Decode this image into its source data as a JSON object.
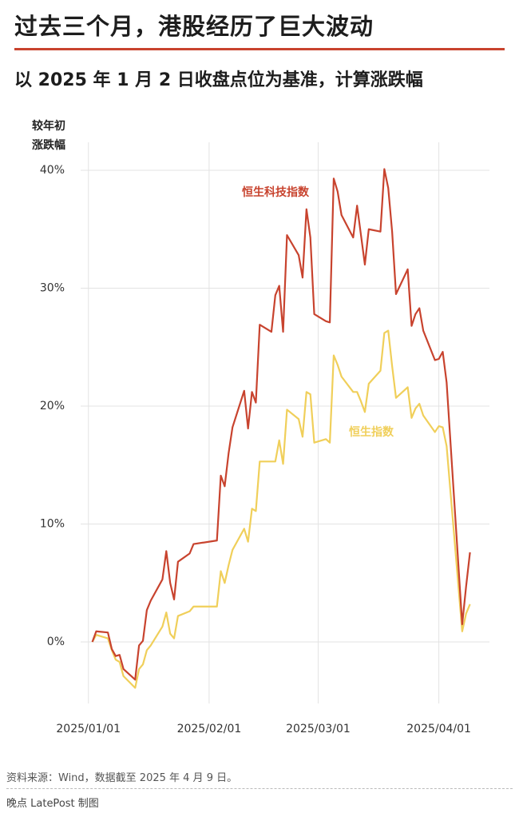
{
  "header": {
    "title": "过去三个月，港股经历了巨大波动",
    "subtitle": "以 2025 年 1 月 2 日收盘点位为基准，计算涨跌幅"
  },
  "chart_data": {
    "type": "line",
    "ylabel": "较年初涨跌幅",
    "x": [
      "2025-01-02",
      "2025-01-03",
      "2025-01-06",
      "2025-01-07",
      "2025-01-08",
      "2025-01-09",
      "2025-01-10",
      "2025-01-13",
      "2025-01-14",
      "2025-01-15",
      "2025-01-16",
      "2025-01-17",
      "2025-01-20",
      "2025-01-21",
      "2025-01-22",
      "2025-01-23",
      "2025-01-24",
      "2025-01-27",
      "2025-01-28",
      "2025-02-03",
      "2025-02-04",
      "2025-02-05",
      "2025-02-06",
      "2025-02-07",
      "2025-02-10",
      "2025-02-11",
      "2025-02-12",
      "2025-02-13",
      "2025-02-14",
      "2025-02-17",
      "2025-02-18",
      "2025-02-19",
      "2025-02-20",
      "2025-02-21",
      "2025-02-24",
      "2025-02-25",
      "2025-02-26",
      "2025-02-27",
      "2025-02-28",
      "2025-03-03",
      "2025-03-04",
      "2025-03-05",
      "2025-03-06",
      "2025-03-07",
      "2025-03-10",
      "2025-03-11",
      "2025-03-12",
      "2025-03-13",
      "2025-03-14",
      "2025-03-17",
      "2025-03-18",
      "2025-03-19",
      "2025-03-20",
      "2025-03-21",
      "2025-03-24",
      "2025-03-25",
      "2025-03-26",
      "2025-03-27",
      "2025-03-28",
      "2025-03-31",
      "2025-04-01",
      "2025-04-02",
      "2025-04-03",
      "2025-04-07",
      "2025-04-08",
      "2025-04-09"
    ],
    "series": [
      {
        "name": "恒生科技指数",
        "color": "#c8432e",
        "values": [
          0,
          0.9,
          0.8,
          -0.6,
          -1.2,
          -1.1,
          -2.3,
          -3.2,
          -0.3,
          0.1,
          2.7,
          3.5,
          5.3,
          7.7,
          5.0,
          3.6,
          6.8,
          7.5,
          8.3,
          8.6,
          14.1,
          13.2,
          16.0,
          18.2,
          21.3,
          18.1,
          21.2,
          20.3,
          26.9,
          26.3,
          29.4,
          30.2,
          26.3,
          34.5,
          32.8,
          30.9,
          36.7,
          34.3,
          27.8,
          27.2,
          27.1,
          39.3,
          38.2,
          36.2,
          34.3,
          37.0,
          34.5,
          32.0,
          35.0,
          34.8,
          40.1,
          38.5,
          34.8,
          29.5,
          31.6,
          26.8,
          27.8,
          28.3,
          26.4,
          23.9,
          24.0,
          24.6,
          22.0,
          1.5,
          4.7,
          7.6
        ]
      },
      {
        "name": "恒生指数",
        "color": "#f0cf5a",
        "values": [
          0,
          0.6,
          0.3,
          -0.7,
          -1.5,
          -1.7,
          -2.9,
          -3.9,
          -2.3,
          -1.9,
          -0.7,
          -0.3,
          1.3,
          2.5,
          0.7,
          0.3,
          2.2,
          2.6,
          3.0,
          3.0,
          6.0,
          5.0,
          6.5,
          7.8,
          9.6,
          8.5,
          11.3,
          11.1,
          15.3,
          15.3,
          15.3,
          17.1,
          15.1,
          19.7,
          18.9,
          17.4,
          21.2,
          21.0,
          16.9,
          17.2,
          16.9,
          24.3,
          23.5,
          22.5,
          21.2,
          21.2,
          20.4,
          19.5,
          21.9,
          23.0,
          26.2,
          26.4,
          23.4,
          20.7,
          21.6,
          19.0,
          19.8,
          20.2,
          19.2,
          17.8,
          18.3,
          18.2,
          16.6,
          0.9,
          2.4,
          3.2
        ]
      }
    ],
    "xlim": [
      "2024-12-30",
      "2025-04-14"
    ],
    "xticks": [
      {
        "value": "2025-01-01",
        "label": "2025/01/01"
      },
      {
        "value": "2025-02-01",
        "label": "2025/02/01"
      },
      {
        "value": "2025-03-01",
        "label": "2025/03/01"
      },
      {
        "value": "2025-04-01",
        "label": "2025/04/01"
      }
    ],
    "ylim": [
      -5,
      42
    ],
    "yticks": [
      {
        "value": 0,
        "label": "0%"
      },
      {
        "value": 10,
        "label": "10%"
      },
      {
        "value": 20,
        "label": "20%"
      },
      {
        "value": 30,
        "label": "30%"
      },
      {
        "value": 40,
        "label": "40%"
      }
    ],
    "grid": true
  },
  "footer": {
    "source": "资料来源：Wind，数据截至 2025 年 4 月 9 日。",
    "credit": "晚点 LatePost 制图"
  }
}
